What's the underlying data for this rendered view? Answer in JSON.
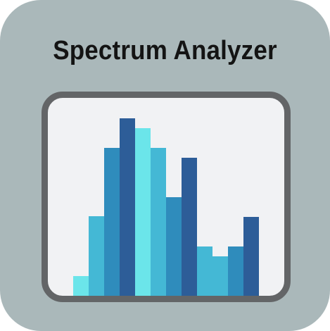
{
  "app": {
    "title": "Spectrum Analyzer"
  },
  "colors": {
    "background": "#aab8ba",
    "frame": "#636567",
    "screen": "#f1f2f4",
    "bar_palette": [
      "#6be5ea",
      "#44b8d5",
      "#2f8cbc",
      "#2d5d98"
    ]
  },
  "chart_data": {
    "type": "bar",
    "title": "",
    "xlabel": "",
    "ylabel": "",
    "ylim": [
      0,
      255
    ],
    "grid": false,
    "values": [
      28,
      113,
      210,
      252,
      238,
      210,
      140,
      196,
      70,
      56,
      70,
      112
    ],
    "color_index": [
      0,
      1,
      2,
      3,
      0,
      1,
      2,
      3,
      1,
      1,
      2,
      3
    ]
  }
}
